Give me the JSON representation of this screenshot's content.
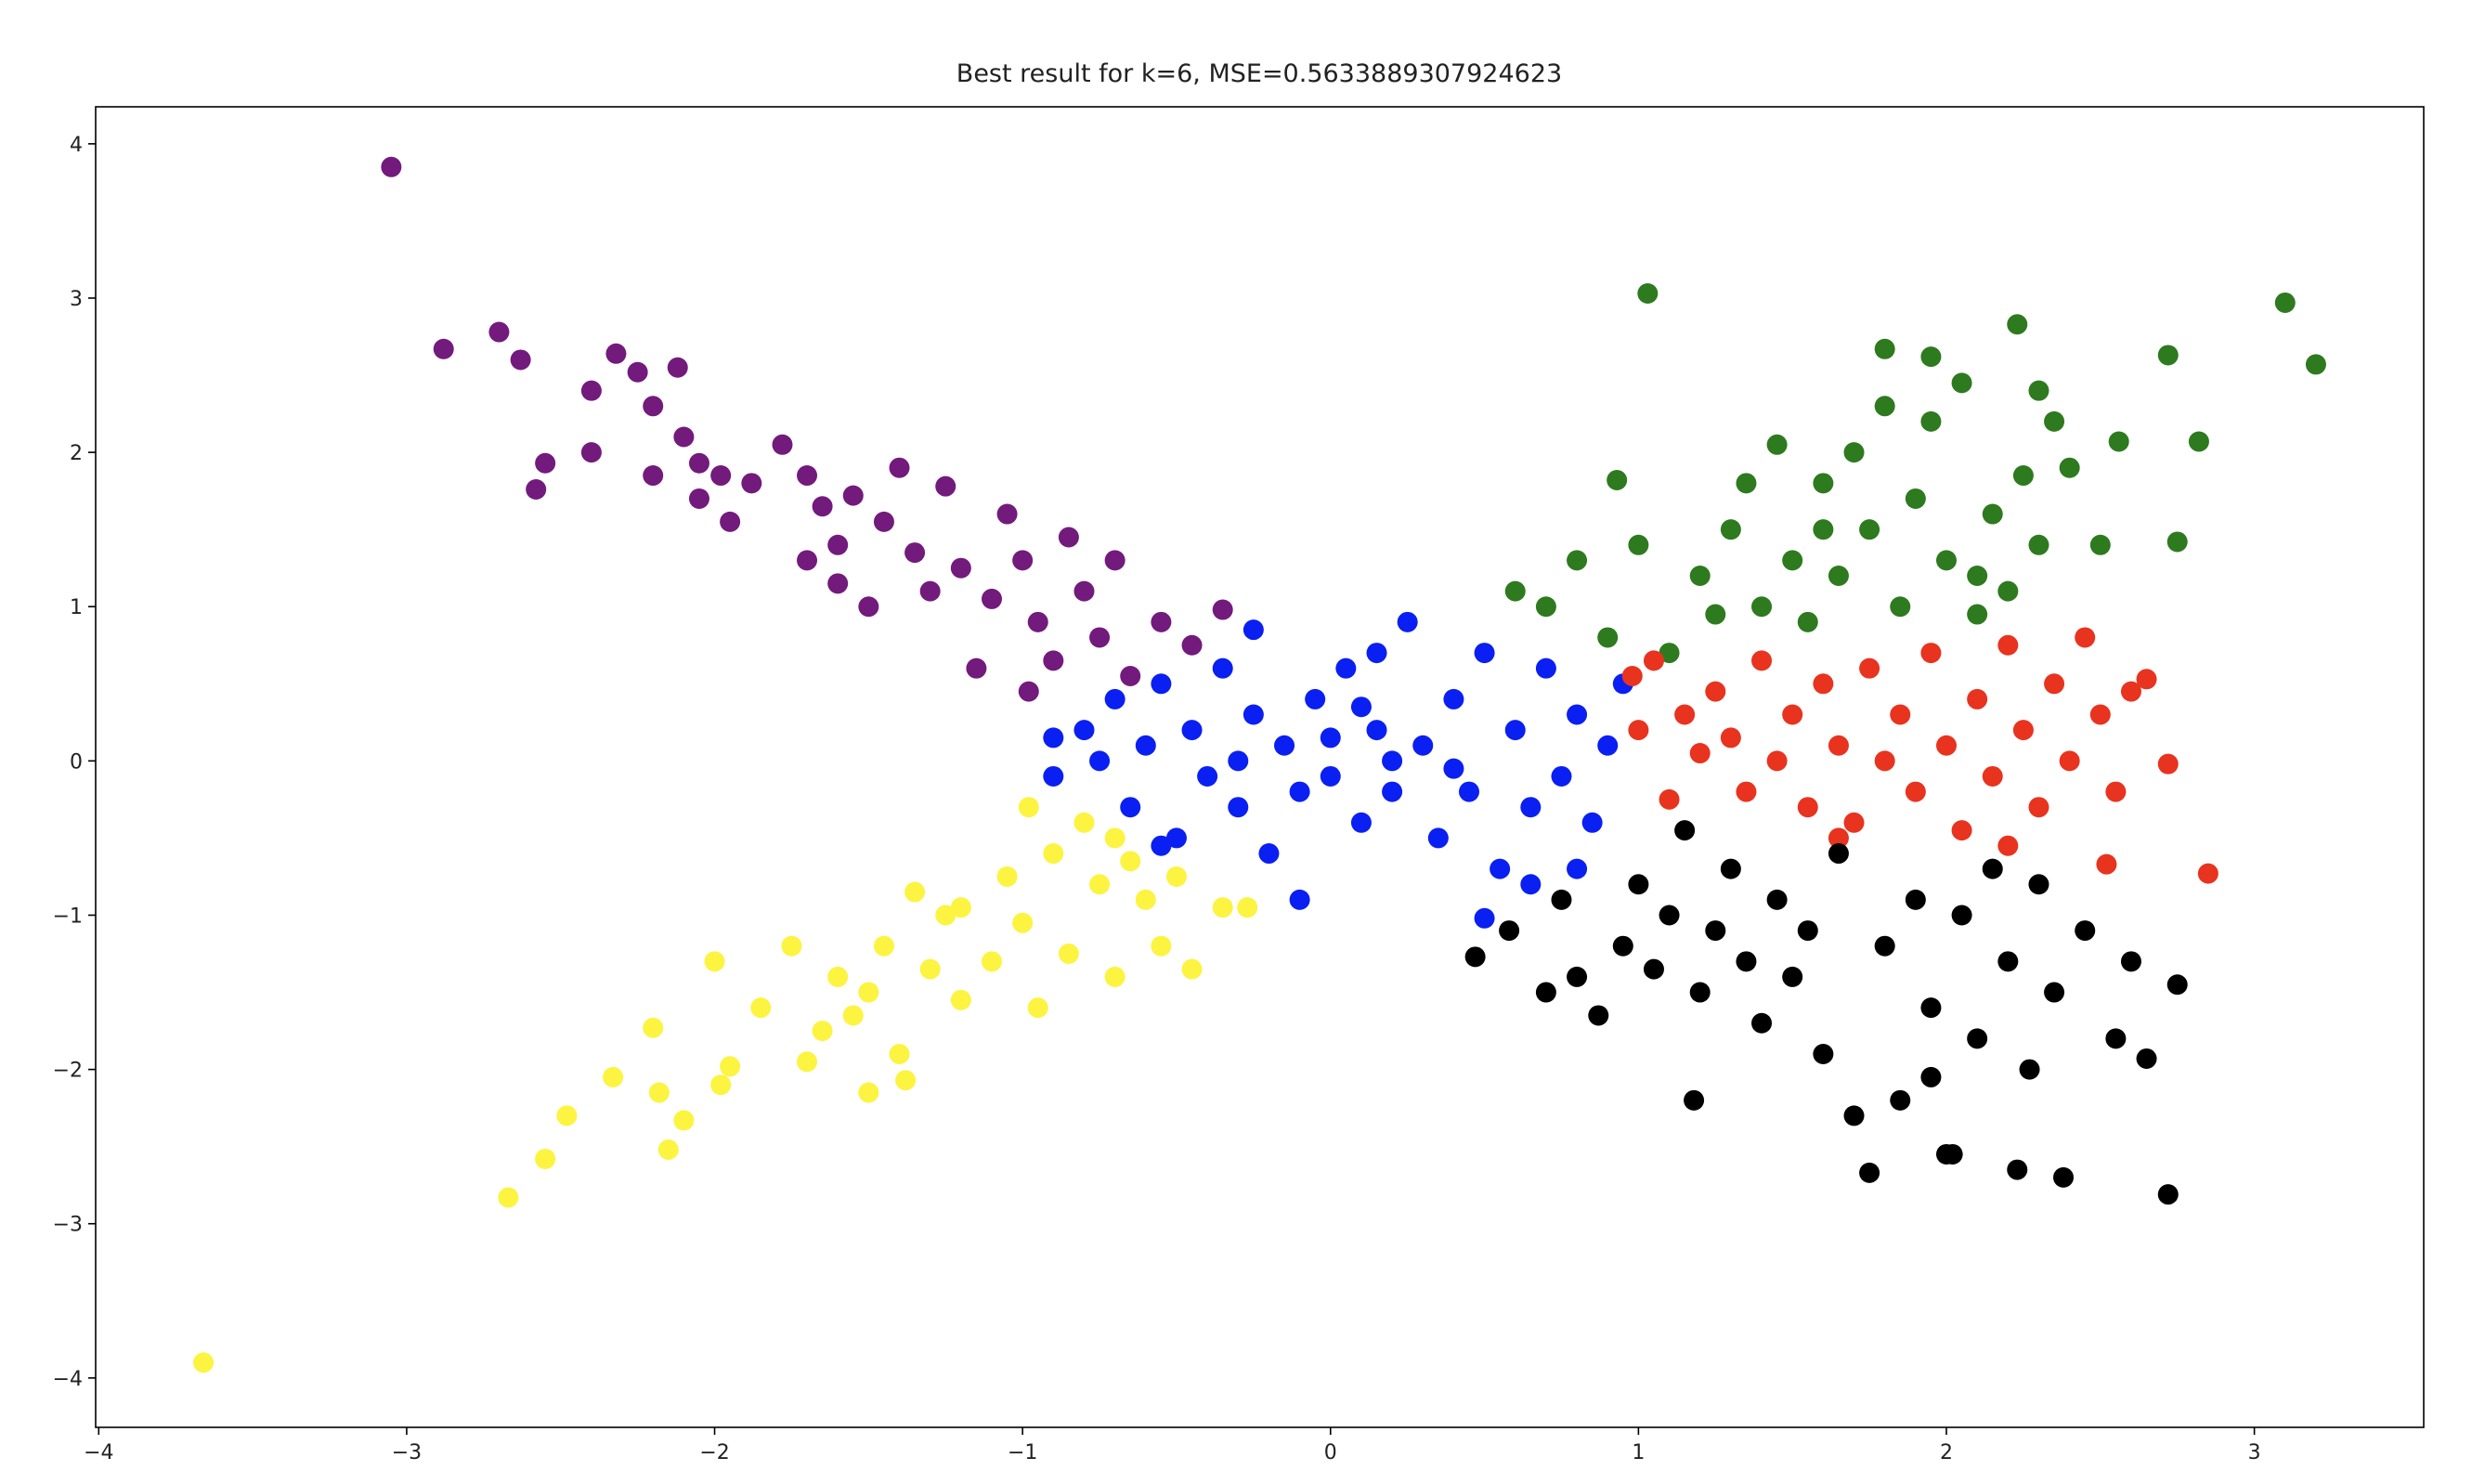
{
  "chart_data": {
    "type": "scatter",
    "title": "Best result for k=6, MSE=0.5633889307924623",
    "xlim": [
      -4.01,
      3.55
    ],
    "ylim": [
      -4.32,
      4.24
    ],
    "xticks": [
      {
        "value": -4,
        "label": "−4"
      },
      {
        "value": -3,
        "label": "−3"
      },
      {
        "value": -2,
        "label": "−2"
      },
      {
        "value": -1,
        "label": "−1"
      },
      0,
      1,
      2,
      3
    ],
    "yticks": [
      {
        "value": -4,
        "label": "−4"
      },
      {
        "value": -3,
        "label": "−3"
      },
      {
        "value": -2,
        "label": "−2"
      },
      {
        "value": -1,
        "label": "−1"
      },
      0,
      1,
      2,
      3,
      4
    ],
    "series": [
      {
        "color": "#731a7d",
        "x": [
          -3.05,
          -2.88,
          -2.7,
          -2.63,
          -2.55,
          -2.58,
          -2.4,
          -2.4,
          -2.32,
          -2.25,
          -2.2,
          -2.12,
          -2.1,
          -2.05,
          -2.05,
          -1.98,
          -1.88,
          -1.78,
          -1.7,
          -1.65,
          -1.6,
          -1.55,
          -1.45,
          -1.4,
          -1.35,
          -1.3,
          -1.25,
          -1.2,
          -1.1,
          -1.05,
          -1.0,
          -0.95,
          -0.9,
          -0.85,
          -0.8,
          -0.75,
          -0.7,
          -0.65,
          -0.55,
          -0.45,
          -0.35,
          -1.15,
          -0.98,
          -1.5,
          -1.7,
          -2.2,
          -1.95,
          -1.6
        ],
        "y": [
          3.85,
          2.67,
          2.78,
          2.6,
          1.93,
          1.76,
          2.4,
          2.0,
          2.64,
          2.52,
          2.3,
          2.55,
          2.1,
          1.93,
          1.7,
          1.85,
          1.8,
          2.05,
          1.85,
          1.65,
          1.4,
          1.72,
          1.55,
          1.9,
          1.35,
          1.1,
          1.78,
          1.25,
          1.05,
          1.6,
          1.3,
          0.9,
          0.65,
          1.45,
          1.1,
          0.8,
          1.3,
          0.55,
          0.9,
          0.75,
          0.98,
          0.6,
          0.45,
          1.0,
          1.3,
          1.85,
          1.55,
          1.15
        ]
      },
      {
        "color": "#fcf440",
        "x": [
          -3.66,
          -2.67,
          -2.55,
          -2.48,
          -2.33,
          -2.2,
          -2.18,
          -2.15,
          -2.1,
          -2.0,
          -1.98,
          -1.95,
          -1.85,
          -1.75,
          -1.7,
          -1.65,
          -1.6,
          -1.55,
          -1.5,
          -1.45,
          -1.4,
          -1.38,
          -1.35,
          -1.3,
          -1.25,
          -1.2,
          -1.1,
          -1.05,
          -1.0,
          -0.95,
          -0.9,
          -0.85,
          -0.8,
          -0.75,
          -0.7,
          -0.65,
          -0.6,
          -0.55,
          -0.5,
          -0.45,
          -0.35,
          -0.27,
          -1.5,
          -1.2,
          -0.98,
          -0.7
        ],
        "y": [
          -3.9,
          -2.83,
          -2.58,
          -2.3,
          -2.05,
          -1.73,
          -2.15,
          -2.52,
          -2.33,
          -1.3,
          -2.1,
          -1.98,
          -1.6,
          -1.2,
          -1.95,
          -1.75,
          -1.4,
          -1.65,
          -2.15,
          -1.2,
          -1.9,
          -2.07,
          -0.85,
          -1.35,
          -1.0,
          -1.55,
          -1.3,
          -0.75,
          -1.05,
          -1.6,
          -0.6,
          -1.25,
          -0.4,
          -0.8,
          -1.4,
          -0.65,
          -0.9,
          -1.2,
          -0.75,
          -1.35,
          -0.95,
          -0.95,
          -1.5,
          -0.95,
          -0.3,
          -0.5
        ]
      },
      {
        "color": "#0a1ff2",
        "x": [
          -0.9,
          -0.8,
          -0.75,
          -0.7,
          -0.65,
          -0.6,
          -0.55,
          -0.5,
          -0.45,
          -0.4,
          -0.35,
          -0.3,
          -0.25,
          -0.2,
          -0.15,
          -0.1,
          -0.05,
          0.0,
          0.05,
          0.1,
          0.15,
          0.2,
          0.25,
          0.3,
          0.35,
          0.4,
          0.45,
          0.5,
          0.55,
          0.6,
          0.65,
          0.7,
          0.75,
          0.8,
          0.85,
          0.9,
          0.95,
          0.5,
          -0.1,
          -0.25,
          0.15,
          -0.55,
          0.65,
          0.0,
          0.2,
          -0.3,
          0.4,
          -0.9,
          0.8,
          0.1
        ],
        "y": [
          -0.1,
          0.2,
          0.0,
          0.4,
          -0.3,
          0.1,
          0.5,
          -0.5,
          0.2,
          -0.1,
          0.6,
          -0.3,
          0.3,
          -0.6,
          0.1,
          -0.2,
          0.4,
          -0.1,
          0.6,
          -0.4,
          0.2,
          -0.2,
          0.9,
          0.1,
          -0.5,
          0.4,
          -0.2,
          0.7,
          -0.7,
          0.2,
          -0.3,
          0.6,
          -0.1,
          0.3,
          -0.4,
          0.1,
          0.5,
          -1.02,
          -0.9,
          0.85,
          0.7,
          -0.55,
          -0.8,
          0.15,
          0.0,
          0.0,
          -0.05,
          0.15,
          -0.7,
          0.35
        ]
      },
      {
        "color": "#2e7a1f",
        "x": [
          1.03,
          1.8,
          1.95,
          2.23,
          2.72,
          3.1,
          3.2,
          2.82,
          0.93,
          0.7,
          0.6,
          0.8,
          1.0,
          1.1,
          1.2,
          1.3,
          1.4,
          1.45,
          1.5,
          1.55,
          1.6,
          1.65,
          1.7,
          1.75,
          1.8,
          1.85,
          1.9,
          1.95,
          2.0,
          2.05,
          2.1,
          2.15,
          2.2,
          2.25,
          2.3,
          2.35,
          2.4,
          2.5,
          2.56,
          2.75,
          0.9,
          1.25,
          1.35,
          2.3,
          2.1,
          1.6
        ],
        "y": [
          3.03,
          2.67,
          2.62,
          2.83,
          2.63,
          2.97,
          2.57,
          2.07,
          1.82,
          1.0,
          1.1,
          1.3,
          1.4,
          0.7,
          1.2,
          1.5,
          1.0,
          2.05,
          1.3,
          0.9,
          1.8,
          1.2,
          2.0,
          1.5,
          2.3,
          1.0,
          1.7,
          2.2,
          1.3,
          2.45,
          0.95,
          1.6,
          1.1,
          1.85,
          1.4,
          2.2,
          1.9,
          1.4,
          2.07,
          1.42,
          0.8,
          0.95,
          1.8,
          2.4,
          1.2,
          1.5
        ]
      },
      {
        "color": "#e8331f",
        "x": [
          0.98,
          1.0,
          1.05,
          1.1,
          1.15,
          1.2,
          1.25,
          1.3,
          1.35,
          1.4,
          1.45,
          1.5,
          1.55,
          1.6,
          1.65,
          1.7,
          1.75,
          1.8,
          1.85,
          1.9,
          1.95,
          2.0,
          2.05,
          2.1,
          2.15,
          2.2,
          2.25,
          2.3,
          2.35,
          2.4,
          2.45,
          2.5,
          2.52,
          2.55,
          2.6,
          2.65,
          2.72,
          2.85,
          1.65,
          2.2
        ],
        "y": [
          0.55,
          0.2,
          0.65,
          -0.25,
          0.3,
          0.05,
          0.45,
          0.15,
          -0.2,
          0.65,
          0.0,
          0.3,
          -0.3,
          0.5,
          0.1,
          -0.4,
          0.6,
          0.0,
          0.3,
          -0.2,
          0.7,
          0.1,
          -0.45,
          0.4,
          -0.1,
          0.75,
          0.2,
          -0.3,
          0.5,
          0.0,
          0.8,
          0.3,
          -0.67,
          -0.2,
          0.45,
          0.53,
          -0.02,
          -0.73,
          -0.5,
          -0.55
        ]
      },
      {
        "color": "#000000",
        "x": [
          0.47,
          0.58,
          0.7,
          0.75,
          0.8,
          0.87,
          0.95,
          1.0,
          1.05,
          1.1,
          1.15,
          1.18,
          1.2,
          1.25,
          1.3,
          1.35,
          1.4,
          1.45,
          1.5,
          1.55,
          1.6,
          1.65,
          1.7,
          1.75,
          1.8,
          1.85,
          1.9,
          1.95,
          2.0,
          2.05,
          2.1,
          2.15,
          2.2,
          2.23,
          2.27,
          2.3,
          2.35,
          2.38,
          2.45,
          2.55,
          2.6,
          2.65,
          2.72,
          2.75,
          2.02,
          1.95
        ],
        "y": [
          -1.27,
          -1.1,
          -1.5,
          -0.9,
          -1.4,
          -1.65,
          -1.2,
          -0.8,
          -1.35,
          -1.0,
          -0.45,
          -2.2,
          -1.5,
          -1.1,
          -0.7,
          -1.3,
          -1.7,
          -0.9,
          -1.4,
          -1.1,
          -1.9,
          -0.6,
          -2.3,
          -2.67,
          -1.2,
          -2.2,
          -0.9,
          -1.6,
          -2.55,
          -1.0,
          -1.8,
          -0.7,
          -1.3,
          -2.65,
          -2.0,
          -0.8,
          -1.5,
          -2.7,
          -1.1,
          -1.8,
          -1.3,
          -1.93,
          -2.81,
          -1.45,
          -2.55,
          -2.05
        ]
      }
    ]
  }
}
